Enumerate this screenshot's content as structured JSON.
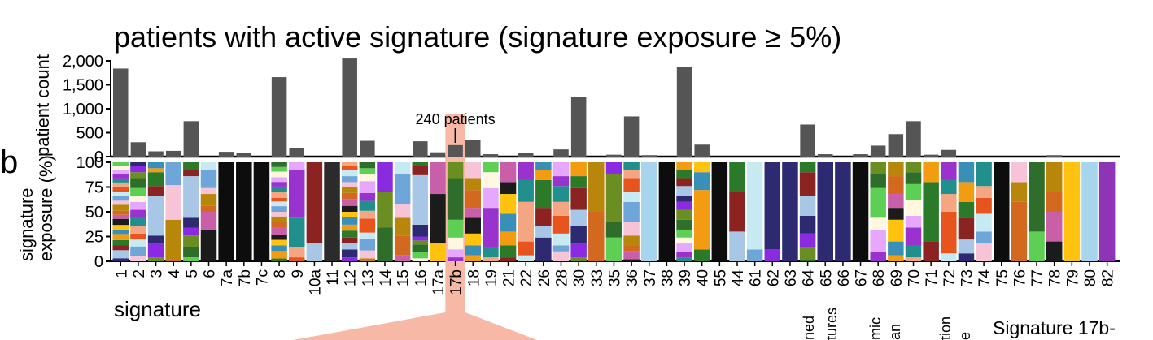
{
  "panel_label": "b",
  "footer": {
    "fragments": [
      "ned",
      "tures",
      "mic",
      "an",
      "tion",
      "e"
    ],
    "right_label": "Signature 17b-"
  },
  "colors": {
    "count_bar": "#555555",
    "highlight": "#f7b9a6",
    "axis": "#000000"
  },
  "chart_data": [
    {
      "type": "bar",
      "title": "patients with active signature (signature exposure ≥ 5%)",
      "ylabel": "patient count",
      "ylim": [
        0,
        2000
      ],
      "yticks": [
        "0",
        "500",
        "1,000",
        "1,500",
        "2,000"
      ],
      "categories": [
        "1",
        "2",
        "3",
        "4",
        "5",
        "6",
        "7a",
        "7b",
        "7c",
        "8",
        "9",
        "10a",
        "11",
        "12",
        "13",
        "14",
        "15",
        "16",
        "17a",
        "17b",
        "18",
        "19",
        "21",
        "22",
        "26",
        "28",
        "30",
        "33",
        "35",
        "36",
        "37",
        "38",
        "39",
        "40",
        "55",
        "44",
        "61",
        "62",
        "63",
        "64",
        "65",
        "66",
        "67",
        "68",
        "69",
        "70",
        "71",
        "72",
        "73",
        "74",
        "75",
        "76",
        "77",
        "78",
        "79",
        "80",
        "82"
      ],
      "values": [
        1840,
        300,
        110,
        120,
        740,
        0,
        100,
        80,
        0,
        1660,
        180,
        0,
        0,
        2050,
        330,
        0,
        0,
        320,
        90,
        240,
        340,
        50,
        0,
        80,
        0,
        150,
        1250,
        0,
        40,
        840,
        30,
        0,
        1870,
        250,
        0,
        0,
        0,
        0,
        0,
        670,
        50,
        0,
        50,
        230,
        470,
        740,
        40,
        140,
        0,
        0,
        0,
        0,
        0,
        30,
        0,
        0,
        0
      ],
      "annotation": {
        "text": "240 patients",
        "category": "17b"
      }
    },
    {
      "type": "stacked_bar",
      "ylabel": "signature exposure (%)",
      "xlabel": "signature",
      "ylim": [
        0,
        100
      ],
      "yticks": [
        "0",
        "25",
        "50",
        "75",
        "100"
      ],
      "highlight_category": "17b",
      "categories": [
        "1",
        "2",
        "3",
        "4",
        "5",
        "6",
        "7a",
        "7b",
        "7c",
        "8",
        "9",
        "10a",
        "11",
        "12",
        "13",
        "14",
        "15",
        "16",
        "17a",
        "17b",
        "18",
        "19",
        "21",
        "22",
        "26",
        "28",
        "30",
        "33",
        "35",
        "36",
        "37",
        "38",
        "39",
        "40",
        "55",
        "44",
        "61",
        "62",
        "63",
        "64",
        "65",
        "66",
        "67",
        "68",
        "69",
        "70",
        "71",
        "72",
        "73",
        "74",
        "75",
        "76",
        "77",
        "78",
        "79",
        "80",
        "82"
      ],
      "series_colors": [
        "#2e2a72",
        "#1b1b1b",
        "#e8541e",
        "#2f6e2a",
        "#f39c12",
        "#f7c3d6",
        "#e6a8ff",
        "#a8c6e5",
        "#c95fa8",
        "#f4a582",
        "#6b8e23",
        "#3a8fb7",
        "#6ea6d9",
        "#fff7e0",
        "#8b2323",
        "#d2691e",
        "#21908c",
        "#8a2be2",
        "#ffc20e",
        "#c7e9f1",
        "#5ecf55",
        "#2a7a2a",
        "#b8860b",
        "#9a32cd"
      ],
      "stacks": [
        [
          3,
          8,
          5,
          5,
          6,
          4,
          5,
          6,
          4,
          4,
          6,
          4,
          5,
          4,
          5,
          4,
          4,
          4,
          4,
          4,
          4
        ],
        [
          5,
          10,
          7,
          6,
          8,
          9,
          7,
          8,
          6,
          8,
          10,
          6,
          6,
          4
        ],
        [
          4,
          14,
          8,
          40,
          10,
          14,
          4,
          6
        ],
        [
          2,
          40,
          35,
          23
        ],
        [
          4,
          10,
          12,
          8,
          10,
          42,
          6,
          8
        ],
        [
          32,
          18,
          6,
          12,
          6,
          18,
          8
        ],
        [
          100
        ],
        [
          100
        ],
        [
          100
        ],
        [
          3,
          8,
          6,
          6,
          5,
          8,
          6,
          6,
          5,
          6,
          5,
          4,
          6,
          6,
          5,
          5,
          6,
          5,
          5
        ],
        [
          4,
          10,
          30,
          48,
          8
        ],
        [
          18,
          82
        ],
        [
          100
        ],
        [
          4,
          8,
          6,
          6,
          7,
          6,
          8,
          5,
          6,
          7,
          6,
          6,
          5,
          6,
          6,
          4,
          4
        ],
        [
          3,
          8,
          12,
          6,
          14,
          8,
          10,
          8,
          12,
          7,
          6,
          6
        ],
        [
          34,
          36,
          30
        ],
        [
          6,
          20,
          18,
          14,
          30,
          12
        ],
        [
          3,
          6,
          8,
          4,
          4,
          12,
          50,
          9,
          4
        ],
        [
          18,
          50,
          32
        ],
        [
          4,
          8,
          12,
          18,
          42,
          16
        ],
        [
          6,
          10,
          12,
          16,
          10,
          18,
          12,
          16
        ],
        [
          4,
          10,
          40,
          20,
          16,
          10
        ],
        [
          4,
          12,
          14,
          18,
          20,
          12,
          20
        ],
        [
          6,
          14,
          40,
          22,
          18
        ],
        [
          24,
          12,
          18,
          28,
          10,
          8
        ],
        [
          10,
          6,
          12,
          18,
          14,
          16,
          10,
          14
        ],
        [
          4,
          14,
          18,
          16,
          22,
          12,
          14
        ],
        [
          50,
          50
        ],
        [
          24,
          16,
          48,
          12
        ],
        [
          2,
          8,
          6,
          10,
          14,
          20,
          10,
          14,
          8,
          8
        ],
        [
          100
        ],
        [
          100
        ],
        [
          4,
          6,
          8,
          6,
          8,
          10,
          10,
          8,
          6,
          10,
          8,
          8,
          8
        ],
        [
          12,
          60,
          18,
          10
        ],
        [
          100
        ],
        [
          30,
          40,
          30
        ],
        [
          12,
          88
        ],
        [
          12,
          88
        ],
        [
          100
        ],
        [
          2,
          12,
          14,
          18,
          20,
          24,
          10
        ],
        [
          100
        ],
        [
          100
        ],
        [
          100
        ],
        [
          10,
          22,
          12,
          30,
          14,
          12
        ],
        [
          6,
          14,
          22,
          12,
          14,
          18,
          14
        ],
        [
          4,
          12,
          18,
          12,
          16,
          16,
          12,
          10
        ],
        [
          20,
          60,
          20
        ],
        [
          8,
          42,
          18,
          14,
          18
        ],
        [
          8,
          14,
          22,
          16,
          20,
          20
        ],
        [
          18,
          12,
          18,
          16,
          12,
          24
        ],
        [
          100
        ],
        [
          60,
          20,
          20
        ],
        [
          30,
          70
        ],
        [
          20,
          30,
          20,
          30
        ],
        [
          100
        ],
        [
          100
        ]
      ]
    }
  ]
}
